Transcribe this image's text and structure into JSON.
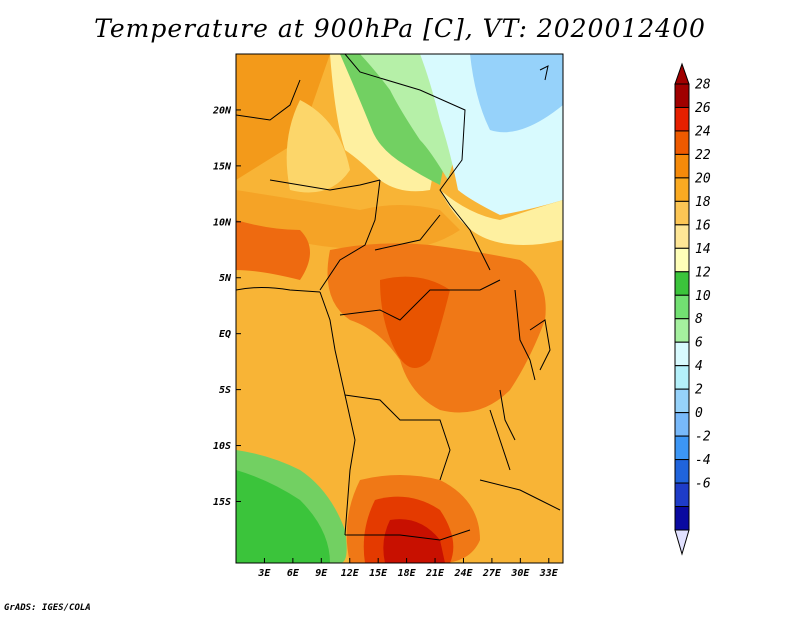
{
  "title": "Temperature at 900hPa [C], VT: 2020012400",
  "credit": "GrADS: IGES/COLA",
  "map": {
    "lon_range": [
      0,
      34.5
    ],
    "lat_range": [
      -20.5,
      25
    ],
    "lon_ticks": [
      {
        "value": 3,
        "label": "3E"
      },
      {
        "value": 6,
        "label": "6E"
      },
      {
        "value": 9,
        "label": "9E"
      },
      {
        "value": 12,
        "label": "12E"
      },
      {
        "value": 15,
        "label": "15E"
      },
      {
        "value": 18,
        "label": "18E"
      },
      {
        "value": 21,
        "label": "21E"
      },
      {
        "value": 24,
        "label": "24E"
      },
      {
        "value": 27,
        "label": "27E"
      },
      {
        "value": 30,
        "label": "30E"
      },
      {
        "value": 33,
        "label": "33E"
      }
    ],
    "lat_ticks": [
      {
        "value": 20,
        "label": "20N"
      },
      {
        "value": 15,
        "label": "15N"
      },
      {
        "value": 10,
        "label": "10N"
      },
      {
        "value": 5,
        "label": "5N"
      },
      {
        "value": 0,
        "label": "EQ"
      },
      {
        "value": -5,
        "label": "5S"
      },
      {
        "value": -10,
        "label": "10S"
      },
      {
        "value": -15,
        "label": "15S"
      }
    ]
  },
  "colorbar": {
    "levels": [
      "28",
      "26",
      "24",
      "22",
      "20",
      "18",
      "16",
      "14",
      "12",
      "10",
      "8",
      "6",
      "4",
      "2",
      "0",
      "-2",
      "-4",
      "-6"
    ],
    "colors": [
      "#a00000",
      "#e62000",
      "#ee5a00",
      "#f58a0a",
      "#faaa22",
      "#fcc655",
      "#fee696",
      "#fefeb8",
      "#3bc43b",
      "#72e072",
      "#a5f09f",
      "#d8fafe",
      "#b4f0fa",
      "#96d2fa",
      "#78b9fa",
      "#3c96f5",
      "#2064dc",
      "#1e3cc8",
      "#0a0aa0"
    ],
    "upper_color": "#a00000",
    "lower_color": "#e1e1ff"
  }
}
